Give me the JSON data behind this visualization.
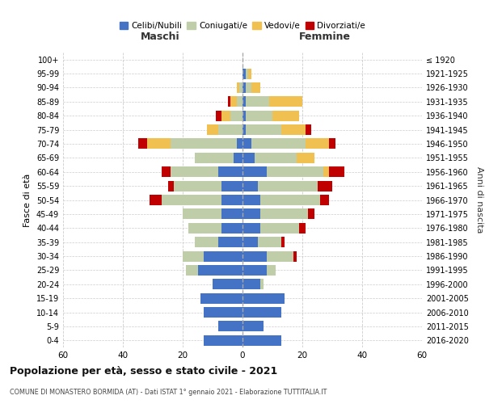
{
  "age_groups": [
    "100+",
    "95-99",
    "90-94",
    "85-89",
    "80-84",
    "75-79",
    "70-74",
    "65-69",
    "60-64",
    "55-59",
    "50-54",
    "45-49",
    "40-44",
    "35-39",
    "30-34",
    "25-29",
    "20-24",
    "15-19",
    "10-14",
    "5-9",
    "0-4"
  ],
  "birth_years": [
    "≤ 1920",
    "1921-1925",
    "1926-1930",
    "1931-1935",
    "1936-1940",
    "1941-1945",
    "1946-1950",
    "1951-1955",
    "1956-1960",
    "1961-1965",
    "1966-1970",
    "1971-1975",
    "1976-1980",
    "1981-1985",
    "1986-1990",
    "1991-1995",
    "1996-2000",
    "2001-2005",
    "2006-2010",
    "2011-2015",
    "2016-2020"
  ],
  "males": {
    "celibe": [
      0,
      0,
      0,
      0,
      0,
      0,
      2,
      3,
      8,
      7,
      7,
      7,
      7,
      8,
      13,
      15,
      10,
      14,
      13,
      8,
      13
    ],
    "coniugato": [
      0,
      0,
      1,
      2,
      4,
      8,
      22,
      13,
      16,
      16,
      20,
      13,
      11,
      8,
      7,
      4,
      0,
      0,
      0,
      0,
      0
    ],
    "vedovo": [
      0,
      0,
      1,
      2,
      3,
      4,
      8,
      0,
      0,
      0,
      0,
      0,
      0,
      0,
      0,
      0,
      0,
      0,
      0,
      0,
      0
    ],
    "divorziato": [
      0,
      0,
      0,
      1,
      2,
      0,
      3,
      0,
      3,
      2,
      4,
      0,
      0,
      0,
      0,
      0,
      0,
      0,
      0,
      0,
      0
    ]
  },
  "females": {
    "nubile": [
      0,
      1,
      1,
      1,
      1,
      1,
      3,
      4,
      8,
      5,
      6,
      6,
      6,
      5,
      8,
      8,
      6,
      14,
      13,
      7,
      13
    ],
    "coniugata": [
      0,
      1,
      2,
      8,
      9,
      12,
      18,
      14,
      19,
      20,
      20,
      16,
      13,
      8,
      9,
      3,
      1,
      0,
      0,
      0,
      0
    ],
    "vedova": [
      0,
      1,
      3,
      11,
      9,
      8,
      8,
      6,
      2,
      0,
      0,
      0,
      0,
      0,
      0,
      0,
      0,
      0,
      0,
      0,
      0
    ],
    "divorziata": [
      0,
      0,
      0,
      0,
      0,
      2,
      2,
      0,
      5,
      5,
      3,
      2,
      2,
      1,
      1,
      0,
      0,
      0,
      0,
      0,
      0
    ]
  },
  "colors": {
    "celibe": "#4472C4",
    "coniugato": "#BFCEA8",
    "vedovo": "#F0C050",
    "divorziato": "#C00000"
  },
  "title": "Popolazione per età, sesso e stato civile - 2021",
  "subtitle": "COMUNE DI MONASTERO BORMIDA (AT) - Dati ISTAT 1° gennaio 2021 - Elaborazione TUTTITALIA.IT",
  "xlabel_left": "Maschi",
  "xlabel_right": "Femmine",
  "ylabel_left": "Fasce di età",
  "ylabel_right": "Anni di nascita",
  "xlim": 60,
  "legend_labels": [
    "Celibi/Nubili",
    "Coniugati/e",
    "Vedovi/e",
    "Divorziati/e"
  ],
  "background_color": "#FFFFFF",
  "grid_color": "#CCCCCC"
}
